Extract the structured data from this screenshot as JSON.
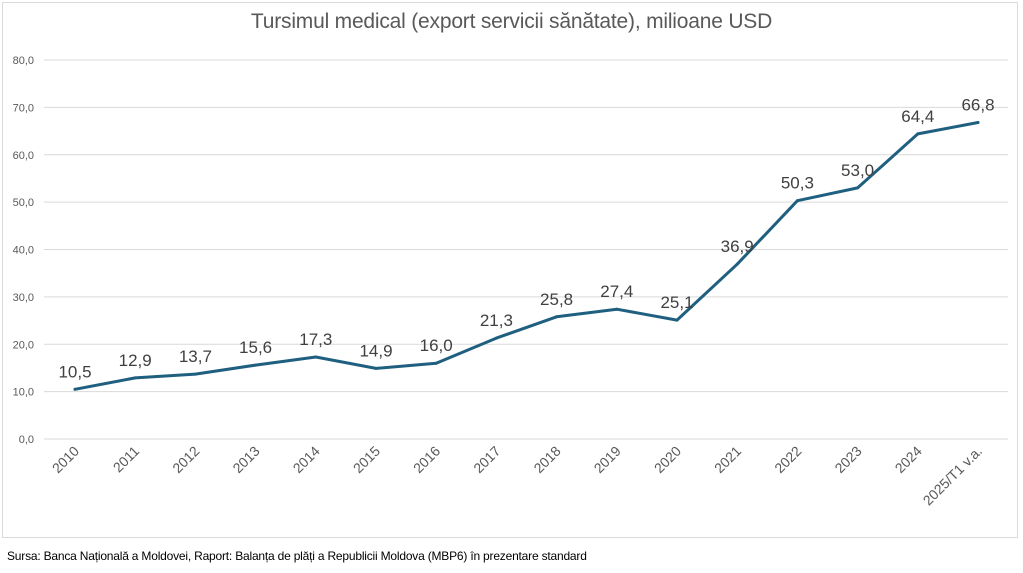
{
  "chart_data": {
    "type": "line",
    "title": "Tursimul medical (export servicii sănătate), milioane USD",
    "xlabel": "",
    "ylabel": "",
    "categories": [
      "2010",
      "2011",
      "2012",
      "2013",
      "2014",
      "2015",
      "2016",
      "2017",
      "2018",
      "2019",
      "2020",
      "2021",
      "2022",
      "2023",
      "2024",
      "2025/T1 v.a."
    ],
    "series": [
      {
        "name": "Export servicii sănătate",
        "values": [
          10.5,
          12.9,
          13.7,
          15.6,
          17.3,
          14.9,
          16.0,
          21.3,
          25.8,
          27.4,
          25.1,
          36.9,
          50.3,
          53.0,
          64.4,
          66.8
        ],
        "data_labels": [
          "10,5",
          "12,9",
          "13,7",
          "15,6",
          "17,3",
          "14,9",
          "16,0",
          "21,3",
          "25,8",
          "27,4",
          "25,1",
          "36,9",
          "50,3",
          "53,0",
          "64,4",
          "66,8"
        ],
        "color": "#1f5f7f"
      }
    ],
    "ylim": [
      0,
      80
    ],
    "yticks": [
      0,
      10,
      20,
      30,
      40,
      50,
      60,
      70,
      80
    ],
    "ytick_labels": [
      "0,0",
      "10,0",
      "20,0",
      "30,0",
      "40,0",
      "50,0",
      "60,0",
      "70,0",
      "80,0"
    ],
    "grid": true,
    "legend": "none",
    "x_tick_rotation_deg": -45
  },
  "source_note": "Sursa: Banca Națională a Moldovei, Raport: Balanța de plăți a Republicii Moldova (MBP6) în prezentare standard",
  "colors": {
    "line": "#1f5f7f",
    "grid": "#d9d9d9",
    "text": "#595959",
    "label": "#404040"
  }
}
